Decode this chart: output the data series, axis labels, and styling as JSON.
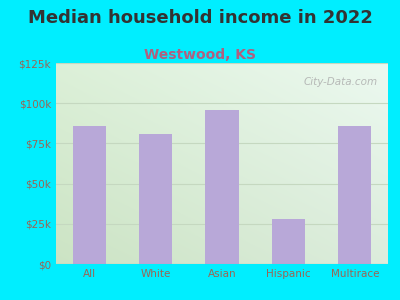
{
  "title": "Median household income in 2022",
  "subtitle": "Westwood, KS",
  "categories": [
    "All",
    "White",
    "Asian",
    "Hispanic",
    "Multirace"
  ],
  "values": [
    86000,
    81000,
    96000,
    28000,
    86000
  ],
  "bar_color": "#b8a8d8",
  "title_fontsize": 13,
  "subtitle_fontsize": 10,
  "title_color": "#333333",
  "subtitle_color": "#b06080",
  "background_color": "#00eeff",
  "ylim": [
    0,
    125000
  ],
  "yticks": [
    0,
    25000,
    50000,
    75000,
    100000,
    125000
  ],
  "ytick_labels": [
    "$0",
    "$25k",
    "$50k",
    "$75k",
    "$100k",
    "$125k"
  ],
  "watermark": "City-Data.com",
  "tick_color": "#996655",
  "grid_color": "#c5d8c0"
}
